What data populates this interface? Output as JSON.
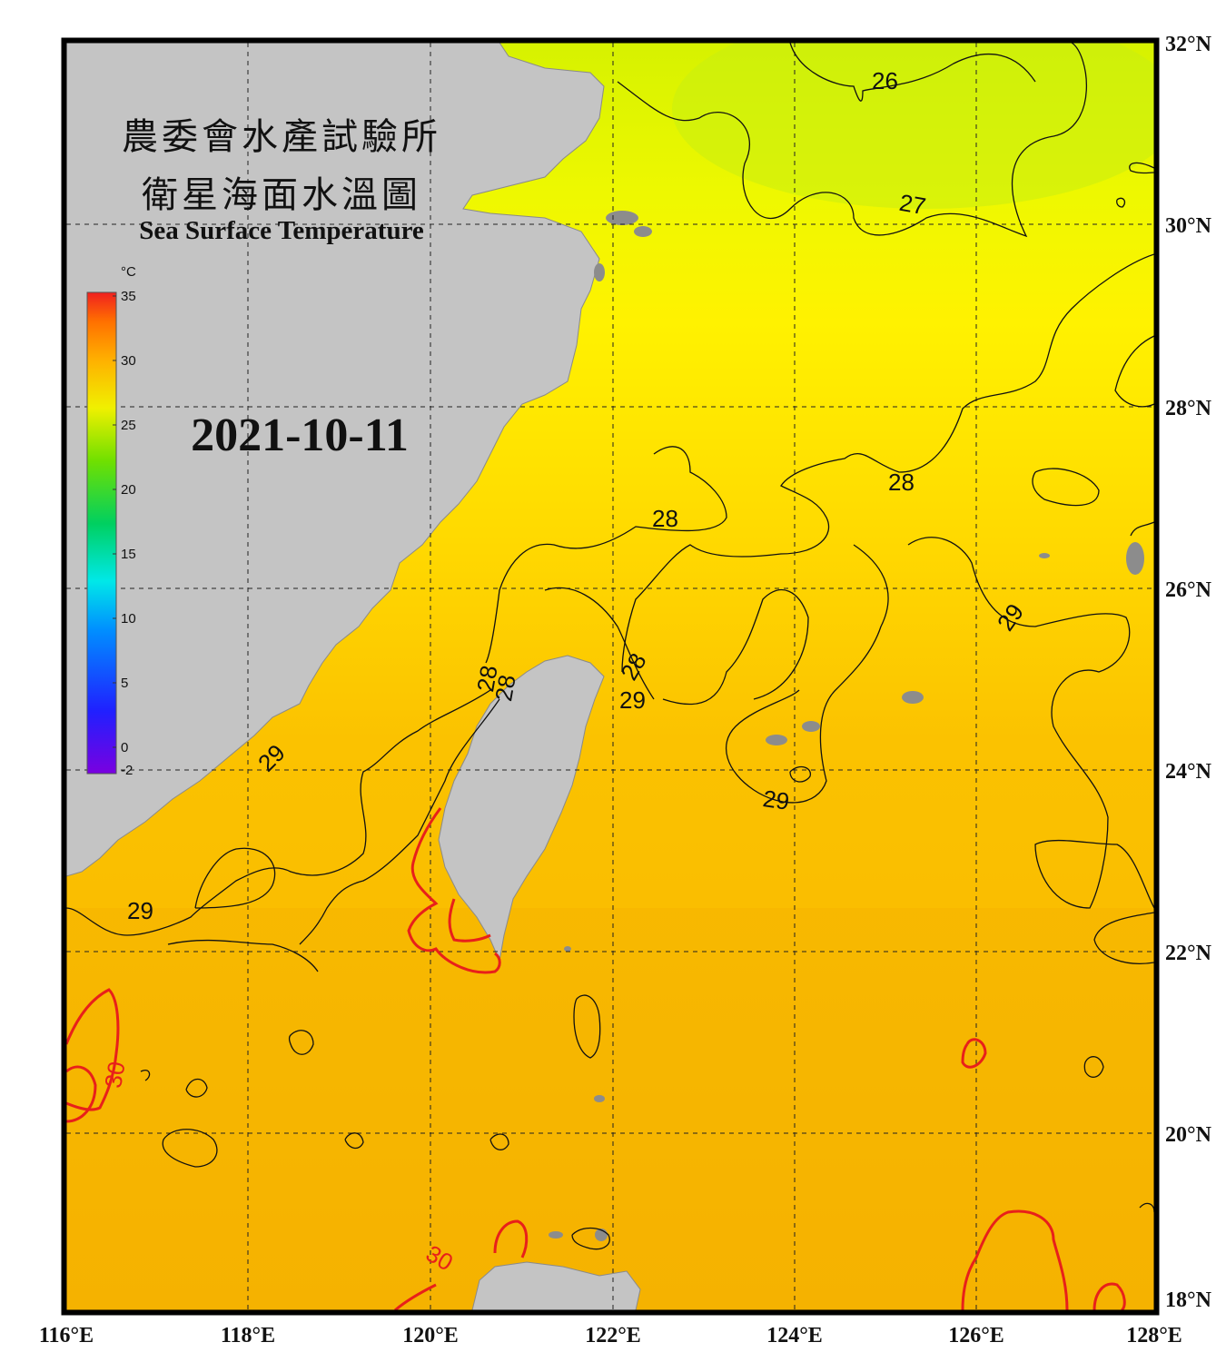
{
  "title": {
    "line1": "農委會水產試驗所",
    "line2": "衛星海面水溫圖",
    "line3": "Sea Surface Temperature"
  },
  "date": "2021-10-11",
  "colorbar": {
    "unit": "°C",
    "ticks": [
      "35",
      "30",
      "25",
      "20",
      "15",
      "10",
      "5",
      "0",
      "-2"
    ],
    "colors": [
      "#7a00e0",
      "#1a1aff",
      "#00b0ff",
      "#00e8e0",
      "#00d050",
      "#70e000",
      "#e8f000",
      "#ffb000",
      "#ff7000",
      "#f02020"
    ]
  },
  "axes": {
    "lon_labels": [
      "116°E",
      "118°E",
      "120°E",
      "122°E",
      "124°E",
      "126°E",
      "128°E"
    ],
    "lat_labels": [
      "32°N",
      "30°N",
      "28°N",
      "26°N",
      "24°N",
      "22°N",
      "20°N",
      "18°N"
    ]
  },
  "contour_labels": {
    "black": [
      "26",
      "27",
      "28",
      "28",
      "28",
      "28",
      "29",
      "29",
      "29",
      "29",
      "29",
      "28",
      "29"
    ],
    "red": [
      "30",
      "30"
    ]
  },
  "colors": {
    "land": "#c4c4c4",
    "sea_warm": "#f7b400",
    "sea_mid": "#ffe500",
    "sea_cool": "#d8f200",
    "contour_black": "#111111",
    "contour_red": "#e8201a"
  }
}
